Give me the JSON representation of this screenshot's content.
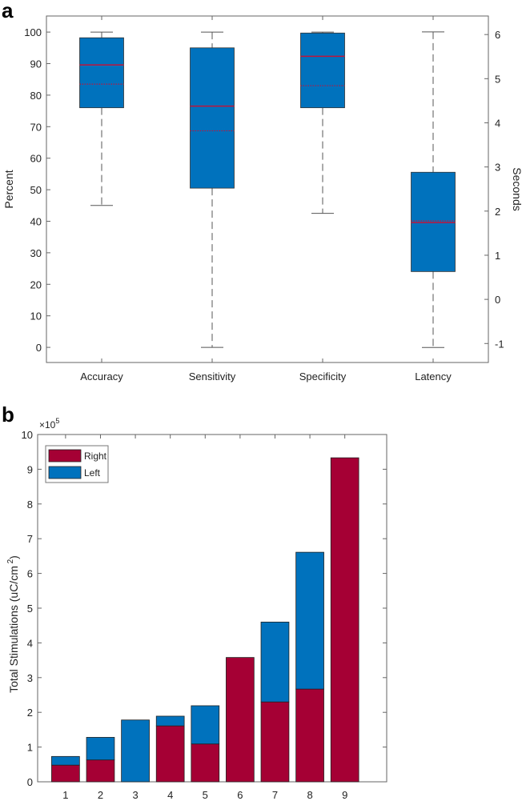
{
  "chart_data": [
    {
      "type": "box",
      "panel_label": "a",
      "categories": [
        "Accuracy",
        "Sensitivity",
        "Specificity",
        "Latency"
      ],
      "ylabel": "Percent",
      "ylabel_right": "Seconds",
      "ylim": [
        -4.8,
        105.1
      ],
      "ylim_right": [
        -1.43,
        6.42
      ],
      "yticks": [
        0,
        10,
        20,
        30,
        40,
        50,
        60,
        70,
        80,
        90,
        100
      ],
      "yticks_right": [
        -1,
        0,
        1,
        2,
        3,
        4,
        5,
        6
      ],
      "boxes": [
        {
          "name": "Accuracy",
          "axis": "left",
          "whisker_low": 45,
          "q1": 76,
          "median": 89.6,
          "mean": 83.5,
          "q3": 98.2,
          "whisker_high": 100
        },
        {
          "name": "Sensitivity",
          "axis": "left",
          "whisker_low": 0,
          "q1": 50.5,
          "median": 76.5,
          "mean": 68.7,
          "q3": 95,
          "whisker_high": 100
        },
        {
          "name": "Specificity",
          "axis": "left",
          "whisker_low": 42.5,
          "q1": 76,
          "median": 92.3,
          "mean": 83,
          "q3": 99.7,
          "whisker_high": 100
        },
        {
          "name": "Latency",
          "axis": "right",
          "whisker_low": -1.09,
          "q1": 0.63,
          "median": 1.74,
          "mean": 1.78,
          "q3": 2.88,
          "whisker_high": 6.06
        }
      ],
      "colors": {
        "box": "#0072bd",
        "median": "#c0143c",
        "mean": "#c0143c",
        "whisker": "#555555"
      }
    },
    {
      "type": "bar",
      "stacked": true,
      "panel_label": "b",
      "categories": [
        "1",
        "2",
        "3",
        "4",
        "5",
        "6",
        "7",
        "8",
        "9"
      ],
      "ylabel": "Total Stimulations (uC/cm",
      "ylabel_sup": "2",
      "ylabel_close": ")",
      "y_multiplier": "×10",
      "y_multiplier_exp": "5",
      "ylim": [
        0,
        10
      ],
      "yticks": [
        0,
        1,
        2,
        3,
        4,
        5,
        6,
        7,
        8,
        9,
        10
      ],
      "xlim": [
        0.2,
        10.2
      ],
      "legend_position": "top-left",
      "series": [
        {
          "name": "Right",
          "color": "#a50034",
          "values": [
            0.48,
            0.63,
            0,
            1.61,
            1.09,
            3.58,
            2.3,
            2.67,
            9.33
          ]
        },
        {
          "name": "Left",
          "color": "#0072bd",
          "values": [
            0.25,
            0.65,
            1.78,
            0.28,
            1.1,
            0,
            2.3,
            3.94,
            0
          ]
        }
      ]
    }
  ]
}
